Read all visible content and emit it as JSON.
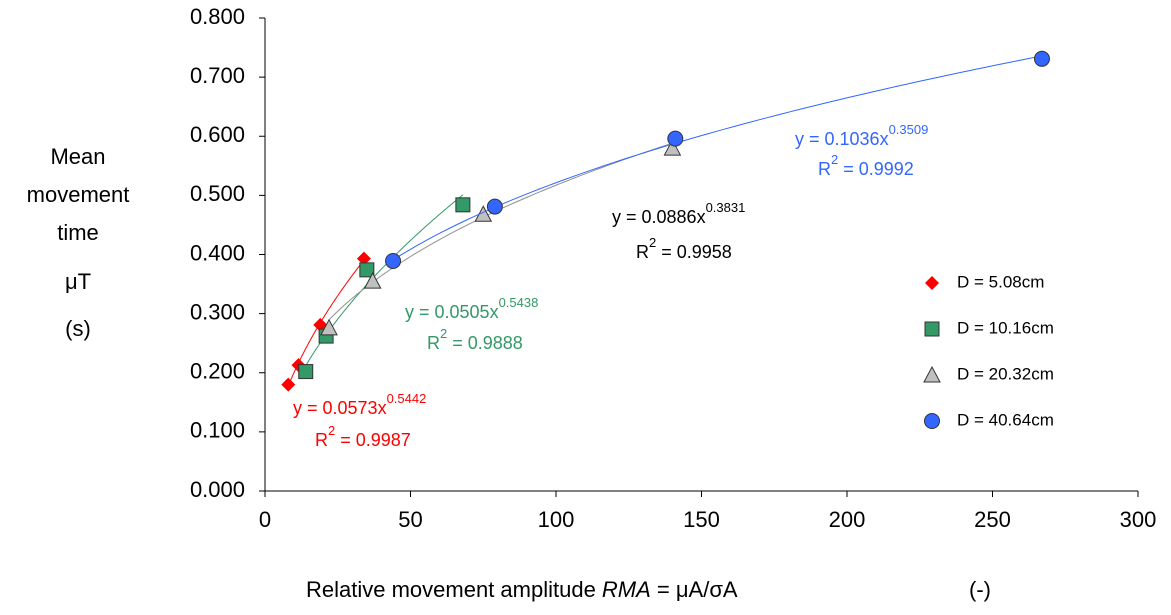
{
  "chart_data": {
    "type": "scatter",
    "y_label_lines": [
      "Mean",
      "movement",
      "time",
      "μT",
      "(s)"
    ],
    "x_label": [
      "Relative movement amplitude ",
      "RMA",
      " = μA/σA",
      "(-)"
    ],
    "xlim": [
      0,
      300
    ],
    "xticks": [
      0,
      50,
      100,
      150,
      200,
      250,
      300
    ],
    "ylim": [
      0,
      0.8
    ],
    "yticks": [
      {
        "value": 0,
        "label": "0.000"
      },
      {
        "value": 0.1,
        "label": "0.100"
      },
      {
        "value": 0.2,
        "label": "0.200"
      },
      {
        "value": 0.3,
        "label": "0.300"
      },
      {
        "value": 0.4,
        "label": "0.400"
      },
      {
        "value": 0.5,
        "label": "0.500"
      },
      {
        "value": 0.6,
        "label": "0.600"
      },
      {
        "value": 0.7,
        "label": "0.700"
      },
      {
        "value": 0.8,
        "label": "0.800"
      }
    ],
    "series": [
      {
        "name": "D = 5.08cm",
        "marker": "diamond",
        "color": "#ff0000",
        "x": [
          8,
          11.5,
          19,
          34
        ],
        "values": [
          0.18,
          0.213,
          0.281,
          0.393
        ],
        "trendline": {
          "coef": 0.0573,
          "exp": 0.5442,
          "color": "#ff0000",
          "label_color": "#ff0000",
          "equation": "y = 0.0573x",
          "exponent": "0.5442",
          "r": "R",
          "sup": "2",
          "rest": " = 0.9987"
        }
      },
      {
        "name": "D = 10.16cm",
        "marker": "square",
        "color": "#339966",
        "x": [
          14,
          21,
          35,
          68
        ],
        "values": [
          0.202,
          0.262,
          0.374,
          0.484
        ],
        "trendline": {
          "coef": 0.0505,
          "exp": 0.5438,
          "color": "#339966",
          "label_color": "#339966",
          "equation": "y = 0.0505x",
          "exponent": "0.5438",
          "r": "R",
          "sup": "2",
          "rest": " = 0.9888"
        }
      },
      {
        "name": "D = 20.32cm",
        "marker": "triangle",
        "color": "#c0c0c0",
        "x": [
          22,
          37,
          75,
          140
        ],
        "values": [
          0.276,
          0.355,
          0.468,
          0.58
        ],
        "trendline": {
          "coef": 0.0886,
          "exp": 0.3831,
          "color": "#909090",
          "label_color": "#000000",
          "equation": "y = 0.0886x",
          "exponent": "0.3831",
          "r": "R",
          "sup": "2",
          "rest": " = 0.9958"
        }
      },
      {
        "name": "D = 40.64cm",
        "marker": "circle",
        "color": "#3366ff",
        "x": [
          44,
          79,
          141,
          267
        ],
        "values": [
          0.389,
          0.481,
          0.596,
          0.731
        ],
        "trendline": {
          "coef": 0.1036,
          "exp": 0.3509,
          "color": "#3366ff",
          "label_color": "#3366ff",
          "equation": "y = 0.1036x",
          "exponent": "0.3509",
          "r": "R",
          "sup": "2",
          "rest": " = 0.9992"
        }
      }
    ]
  }
}
